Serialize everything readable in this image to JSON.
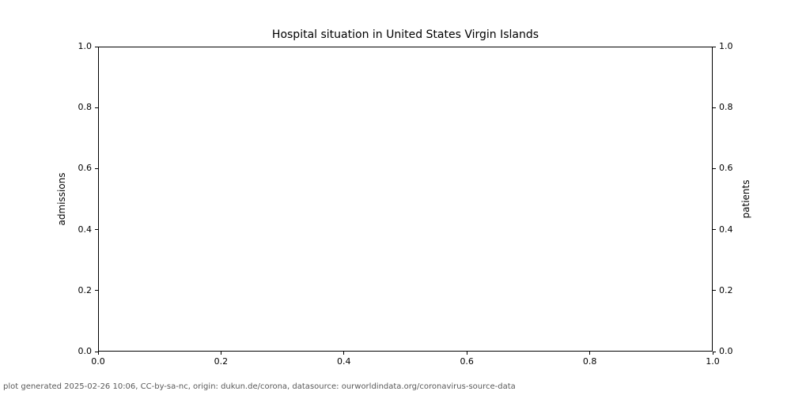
{
  "colors": {
    "background": "#ffffff",
    "spine": "#000000",
    "tick_text": "#000000",
    "footer_text": "#595959"
  },
  "chart_data": {
    "type": "line",
    "title": "Hospital situation in United States Virgin Islands",
    "xlabel": "",
    "ylabel_left": "admissions",
    "ylabel_right": "patients",
    "xlim": [
      0.0,
      1.0
    ],
    "ylim_left": [
      0.0,
      1.0
    ],
    "ylim_right": [
      0.0,
      1.0
    ],
    "xtick_labels": [
      "0.0",
      "0.2",
      "0.4",
      "0.6",
      "0.8",
      "1.0"
    ],
    "ytick_labels_left": [
      "0.0",
      "0.2",
      "0.4",
      "0.6",
      "0.8",
      "1.0"
    ],
    "ytick_labels_right": [
      "0.0",
      "0.2",
      "0.4",
      "0.6",
      "0.8",
      "1.0"
    ],
    "grid": false,
    "legend": "none",
    "series": []
  },
  "footer": {
    "text": "plot generated 2025-02-26 10:06, CC-by-sa-nc, origin: dukun.de/corona, datasource: ourworldindata.org/coronavirus-source-data"
  }
}
